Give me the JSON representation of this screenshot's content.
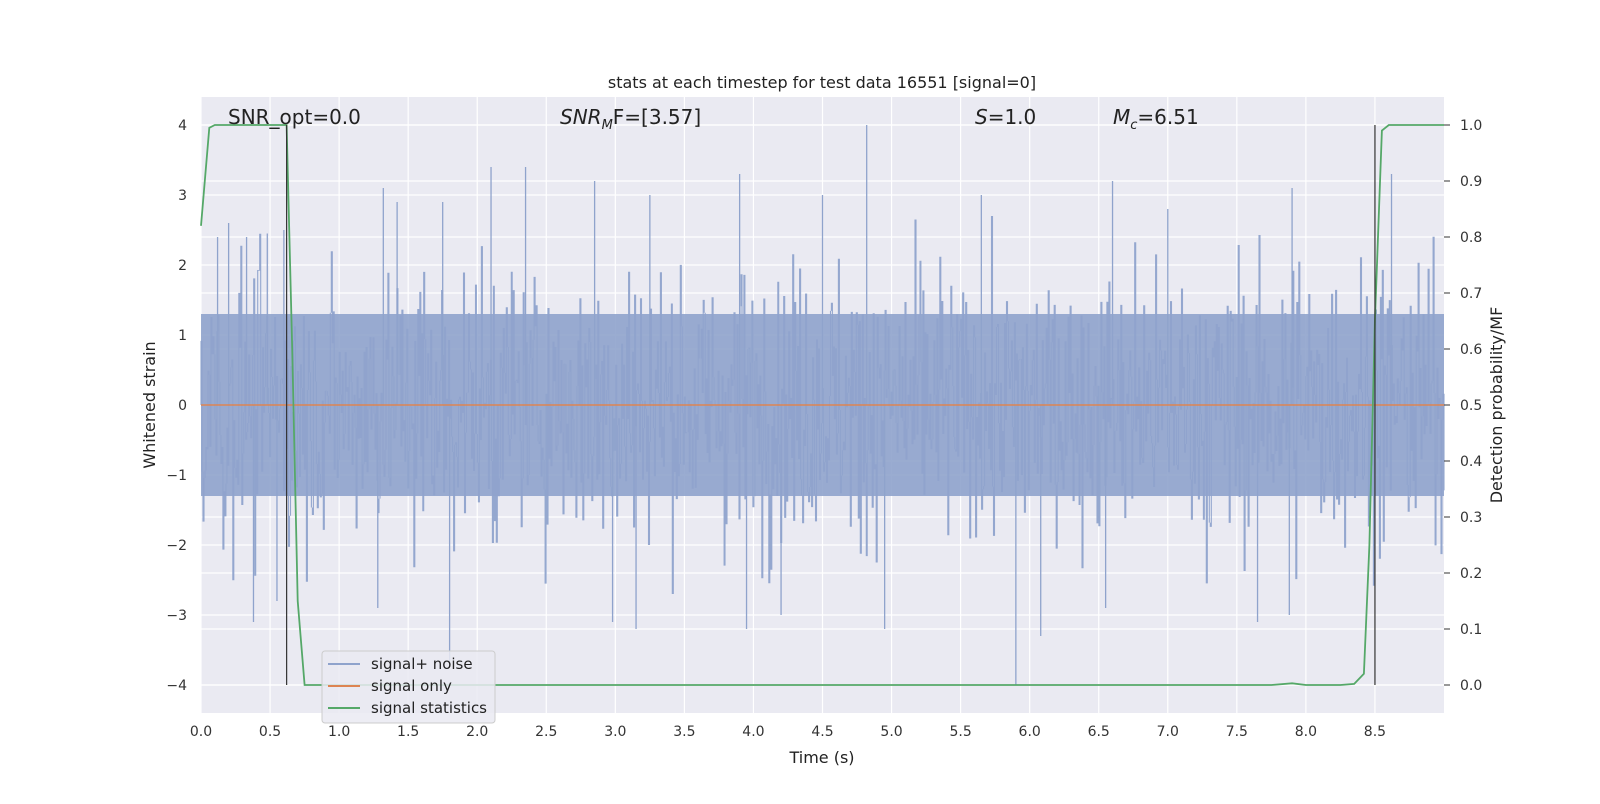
{
  "chart_data": {
    "type": "line",
    "title": "stats at each timestep for test data 16551 [signal=0]",
    "xlabel": "Time (s)",
    "ylabel": "Whitened strain",
    "ylabel_right": "Detection probability/MF",
    "xlim": [
      0.0,
      9.0
    ],
    "ylim": [
      -4.4,
      4.4
    ],
    "ylim_right": [
      -0.05,
      1.05
    ],
    "x_ticks": [
      "0.0",
      "0.5",
      "1.0",
      "1.5",
      "2.0",
      "2.5",
      "3.0",
      "3.5",
      "4.0",
      "4.5",
      "5.0",
      "5.5",
      "6.0",
      "6.5",
      "7.0",
      "7.5",
      "8.0",
      "8.5"
    ],
    "y_ticks": [
      "4",
      "3",
      "2",
      "1",
      "0",
      "−1",
      "−2",
      "−3",
      "−4"
    ],
    "y_ticks_right": [
      "1.0",
      "0.9",
      "0.8",
      "0.7",
      "0.6",
      "0.5",
      "0.4",
      "0.3",
      "0.2",
      "0.1",
      "0.0"
    ],
    "grid": true,
    "legend_position": "lower-left",
    "annotations": {
      "snr_opt": "SNR_opt=0.0",
      "snr_mf_main": "SNR",
      "snr_mf_sub": "M",
      "snr_mf_rest": "F=[3.57]",
      "s_main": "S",
      "s_rest": "=1.0",
      "mc_main": "M",
      "mc_sub": "c",
      "mc_rest": "=6.51"
    },
    "vertical_markers_x": [
      0.62,
      8.5
    ],
    "series": [
      {
        "name": "signal+ noise",
        "color": "#8fa3cc",
        "description_values": "whitened noise, |y| mostly below ~2, occasional spikes",
        "spikes": [
          [
            0.12,
            2.4
          ],
          [
            0.2,
            2.6
          ],
          [
            0.33,
            2.4
          ],
          [
            0.48,
            2.45
          ],
          [
            0.6,
            2.5
          ],
          [
            1.32,
            3.1
          ],
          [
            1.42,
            2.9
          ],
          [
            1.75,
            2.9
          ],
          [
            2.1,
            3.4
          ],
          [
            2.35,
            3.4
          ],
          [
            2.85,
            3.2
          ],
          [
            3.25,
            3.0
          ],
          [
            3.9,
            3.3
          ],
          [
            4.5,
            3.0
          ],
          [
            4.82,
            4.0
          ],
          [
            5.65,
            3.0
          ],
          [
            6.6,
            3.2
          ],
          [
            7.0,
            2.8
          ],
          [
            7.9,
            3.1
          ],
          [
            8.62,
            3.3
          ],
          [
            0.38,
            -3.1
          ],
          [
            0.55,
            -2.8
          ],
          [
            1.8,
            -3.7
          ],
          [
            2.98,
            -3.1
          ],
          [
            3.15,
            -3.2
          ],
          [
            3.95,
            -3.2
          ],
          [
            4.95,
            -3.2
          ],
          [
            5.9,
            -4.0
          ],
          [
            6.08,
            -3.3
          ],
          [
            7.65,
            -3.1
          ],
          [
            7.88,
            -3.0
          ],
          [
            1.28,
            -2.9
          ],
          [
            6.55,
            -2.9
          ],
          [
            4.2,
            -3.0
          ]
        ]
      },
      {
        "name": "signal only",
        "color": "#dd8452",
        "x": [
          0.0,
          9.0
        ],
        "y": [
          0.0,
          0.0
        ]
      },
      {
        "name": "signal statistics",
        "color": "#55a868",
        "axis": "right",
        "x": [
          0.0,
          0.06,
          0.1,
          0.2,
          0.3,
          0.4,
          0.5,
          0.6,
          0.62,
          0.66,
          0.7,
          0.75,
          0.8,
          1.0,
          2.0,
          3.0,
          4.0,
          5.0,
          6.0,
          7.0,
          7.5,
          7.75,
          7.9,
          8.0,
          8.25,
          8.35,
          8.42,
          8.46,
          8.5,
          8.55,
          8.6,
          8.7,
          8.8,
          9.0
        ],
        "y": [
          0.82,
          0.995,
          1.0,
          1.0,
          1.0,
          1.0,
          1.0,
          1.0,
          1.0,
          0.6,
          0.15,
          0.0,
          0.0,
          0.0,
          0.0,
          0.0,
          0.0,
          0.0,
          0.0,
          0.0,
          0.0,
          0.0,
          0.003,
          0.0,
          0.0,
          0.002,
          0.02,
          0.25,
          0.65,
          0.99,
          1.0,
          1.0,
          1.0,
          1.0
        ]
      }
    ]
  },
  "legend": {
    "items": [
      {
        "label": "signal+ noise",
        "color": "#8fa3cc"
      },
      {
        "label": "signal only",
        "color": "#dd8452"
      },
      {
        "label": "signal statistics",
        "color": "#55a868"
      }
    ]
  }
}
